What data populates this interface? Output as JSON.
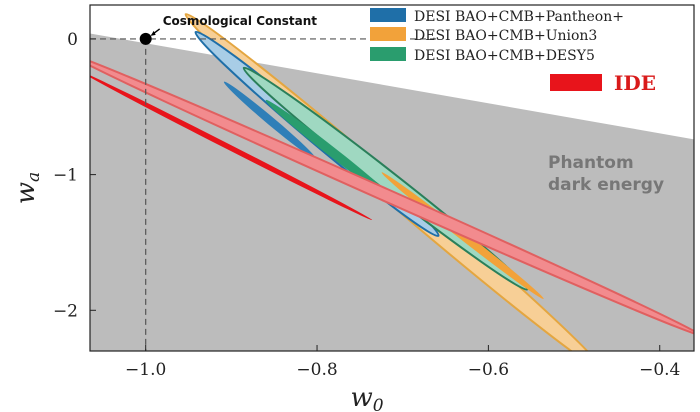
{
  "chart_data": {
    "type": "contour",
    "xlabel_main": "w",
    "xlabel_sub": "0",
    "ylabel_main": "w",
    "ylabel_sub": "a",
    "xlim": [
      -1.065,
      -0.36
    ],
    "ylim": [
      -2.3,
      0.25
    ],
    "xticks": [
      -1.0,
      -0.8,
      -0.6,
      -0.4
    ],
    "xtick_labels": [
      "−1.0",
      "−0.8",
      "−0.6",
      "−0.4"
    ],
    "yticks": [
      0,
      -1,
      -2
    ],
    "ytick_labels": [
      "0",
      "−1",
      "−2"
    ],
    "phantom_boundary": [
      [
        -1.065,
        0.04
      ],
      [
        -0.36,
        -0.74
      ]
    ],
    "reference_point": {
      "x": -1.0,
      "y": 0.0,
      "label": "Cosmological  Constant"
    },
    "phantom_label_line1": "Phantom",
    "phantom_label_line2": "dark energy",
    "legend": [
      {
        "label": "DESI BAO+CMB+Pantheon+",
        "color": "#1f6fa8"
      },
      {
        "label": "DESI BAO+CMB+Union3",
        "color": "#f2a23a"
      },
      {
        "label": "DESI BAO+CMB+DESY5",
        "color": "#2a9d6e"
      },
      {
        "label": "IDE",
        "color": "#e8141b"
      }
    ],
    "contours": [
      {
        "series": "DESI BAO+CMB+Union3",
        "level": "2sigma",
        "cx": -0.71,
        "cy": -1.13,
        "rx": 0.32,
        "ry": 0.085,
        "angle_deg": 40.5,
        "fill": "#f7cf96",
        "stroke": "#e4a640"
      },
      {
        "series": "DESI BAO+CMB+Pantheon+",
        "level": "2sigma",
        "cx": -0.8,
        "cy": -0.7,
        "rx": 0.185,
        "ry": 0.07,
        "angle_deg": 40,
        "fill": "#a8cde6",
        "stroke": "#1f6fa8"
      },
      {
        "series": "DESI BAO+CMB+DESY5",
        "level": "2sigma",
        "cx": -0.72,
        "cy": -1.03,
        "rx": 0.21,
        "ry": 0.068,
        "angle_deg": 38,
        "fill": "#9fd8c1",
        "stroke": "#2a7f5a"
      },
      {
        "series": "DESI BAO+CMB+Union3",
        "level": "1sigma",
        "cx": -0.63,
        "cy": -1.45,
        "rx": 0.12,
        "ry": 0.03,
        "angle_deg": 38,
        "fill": "#f2a23a",
        "stroke": "none"
      },
      {
        "series": "DESI BAO+CMB+Pantheon+",
        "level": "1sigma",
        "cx": -0.855,
        "cy": -0.6,
        "rx": 0.07,
        "ry": 0.03,
        "angle_deg": 40,
        "fill": "#2f7fb8",
        "stroke": "none"
      },
      {
        "series": "DESI BAO+CMB+DESY5",
        "level": "1sigma",
        "cx": -0.785,
        "cy": -0.82,
        "rx": 0.095,
        "ry": 0.035,
        "angle_deg": 38,
        "fill": "#2a9d6e",
        "stroke": "none"
      },
      {
        "series": "IDE",
        "level": "2sigma",
        "cx": -0.72,
        "cy": -1.15,
        "rx": 0.4,
        "ry": 0.045,
        "angle_deg": 24,
        "fill": "#f28b8e",
        "stroke": "#e06060"
      },
      {
        "series": "IDE",
        "level": "1sigma",
        "cx": -0.905,
        "cy": -0.79,
        "rx": 0.19,
        "ry": 0.02,
        "angle_deg": 27,
        "fill": "#e8141b",
        "stroke": "none"
      }
    ]
  }
}
